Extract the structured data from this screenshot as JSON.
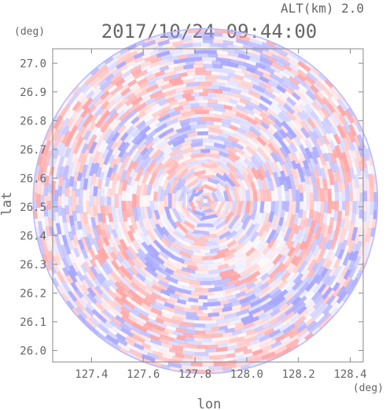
{
  "chart_data": {
    "type": "heatmap",
    "title": "2017/10/24 09:44:00",
    "altitude_label": "ALT(km) 2.0",
    "xlabel": "lon",
    "ylabel": "lat",
    "x_unit": "(deg)",
    "y_unit": "(deg)",
    "xlim": [
      127.25,
      128.45
    ],
    "ylim": [
      25.96,
      27.05
    ],
    "xticks": [
      127.4,
      127.6,
      127.8,
      128.0,
      128.2,
      128.4
    ],
    "xtick_labels": [
      "127.4",
      "127.6",
      "127.8",
      "128.0",
      "128.2",
      "128.4"
    ],
    "yticks": [
      26.0,
      26.1,
      26.2,
      26.3,
      26.4,
      26.5,
      26.6,
      26.7,
      26.8,
      26.9,
      27.0
    ],
    "ytick_labels": [
      "26.0",
      "26.1",
      "26.2",
      "26.3",
      "26.4",
      "26.5",
      "26.6",
      "26.7",
      "26.8",
      "26.9",
      "27.0"
    ],
    "center": [
      127.84,
      26.52
    ],
    "radius_deg": 0.6,
    "grid": false,
    "colors": {
      "positive": "#ff9a9a",
      "negative": "#9a9aff",
      "axis": "#888888",
      "text": "#666666"
    }
  }
}
